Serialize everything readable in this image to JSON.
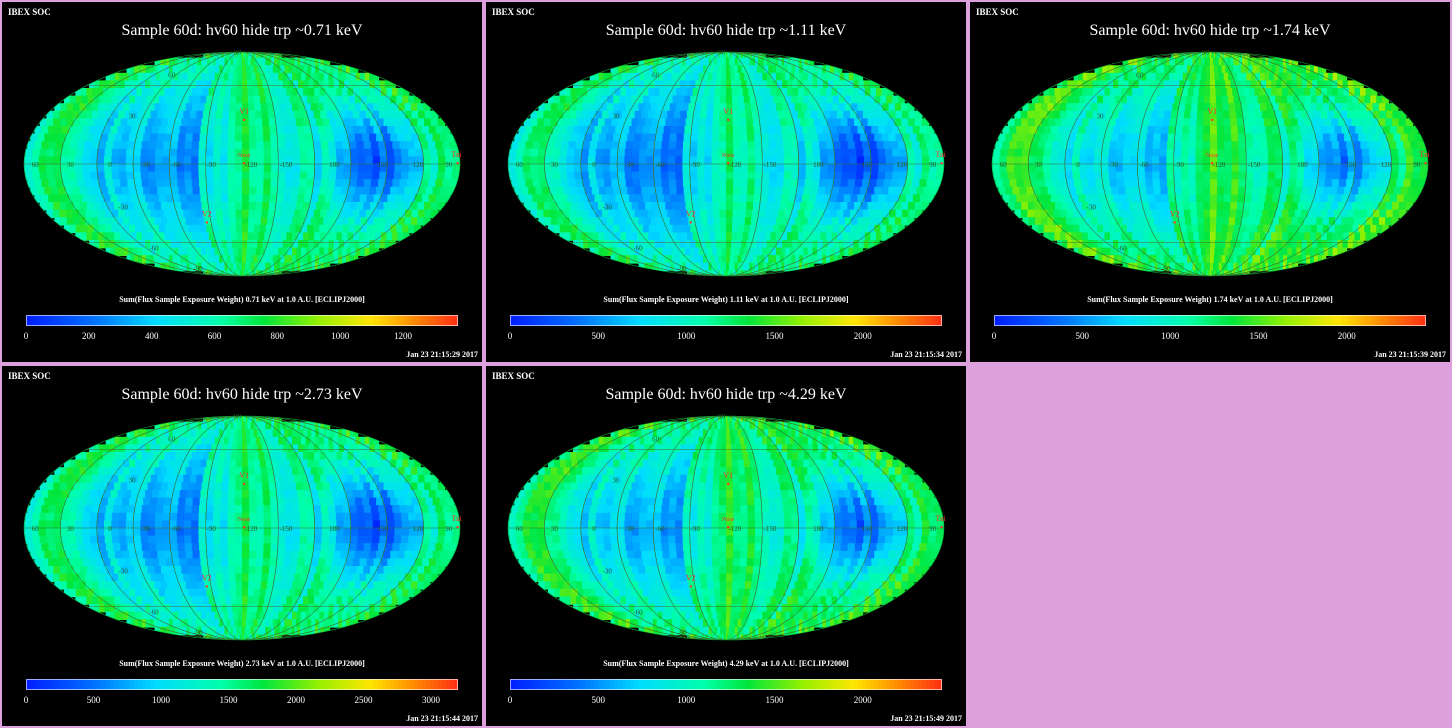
{
  "panels": [
    {
      "soc": "IBEX SOC",
      "title": "Sample 60d: hv60 hide trp ~0.71 keV",
      "colorbar_label": "Sum(Flux Sample Exposure Weight)  0.71 keV at 1.0 A.U. [ECLIPJ2000]",
      "timestamp": "Jan 23 21:15:29 2017",
      "ticks": [
        "0",
        "200",
        "400",
        "600",
        "800",
        "1000",
        "1200"
      ],
      "tick_values": [
        0,
        200,
        400,
        600,
        800,
        1000,
        1200
      ],
      "vmax": 1375,
      "green_level": 0.45
    },
    {
      "soc": "IBEX SOC",
      "title": "Sample 60d: hv60 hide trp ~1.11 keV",
      "colorbar_label": "Sum(Flux Sample Exposure Weight)  1.11 keV at 1.0 A.U. [ECLIPJ2000]",
      "timestamp": "Jan 23 21:15:34 2017",
      "ticks": [
        "0",
        "500",
        "1000",
        "1500",
        "2000"
      ],
      "tick_values": [
        0,
        500,
        1000,
        1500,
        2000
      ],
      "vmax": 2450,
      "green_level": 0.42
    },
    {
      "soc": "IBEX SOC",
      "title": "Sample 60d: hv60 hide trp ~1.74 keV",
      "colorbar_label": "Sum(Flux Sample Exposure Weight)  1.74 keV at 1.0 A.U. [ECLIPJ2000]",
      "timestamp": "Jan 23 21:15:39 2017",
      "ticks": [
        "0",
        "500",
        "1000",
        "1500",
        "2000"
      ],
      "tick_values": [
        0,
        500,
        1000,
        1500,
        2000
      ],
      "vmax": 2450,
      "green_level": 0.52
    },
    {
      "soc": "IBEX SOC",
      "title": "Sample 60d: hv60 hide trp ~2.73 keV",
      "colorbar_label": "Sum(Flux Sample Exposure Weight)  2.73 keV at 1.0 A.U. [ECLIPJ2000]",
      "timestamp": "Jan 23 21:15:44 2017",
      "ticks": [
        "0",
        "500",
        "1000",
        "1500",
        "2000",
        "2500",
        "3000"
      ],
      "tick_values": [
        0,
        500,
        1000,
        1500,
        2000,
        2500,
        3000
      ],
      "vmax": 3200,
      "green_level": 0.44
    },
    {
      "soc": "IBEX SOC",
      "title": "Sample 60d: hv60 hide trp ~4.29 keV",
      "colorbar_label": "Sum(Flux Sample Exposure Weight)  4.29 keV at 1.0 A.U. [ECLIPJ2000]",
      "timestamp": "Jan 23 21:15:49 2017",
      "ticks": [
        "0",
        "500",
        "1000",
        "1500",
        "2000"
      ],
      "tick_values": [
        0,
        500,
        1000,
        1500,
        2000
      ],
      "vmax": 2450,
      "green_level": 0.48
    }
  ],
  "map_labels": {
    "lon_left": [
      "60",
      "30",
      "0",
      "-30",
      "-60",
      "-90",
      "-120",
      "-150",
      "180",
      "150",
      "120",
      "90"
    ],
    "lat": [
      "60",
      "30",
      "-30",
      "-60",
      "-90",
      "90"
    ],
    "markers": [
      "V1",
      "V2",
      "Nose",
      "Tail"
    ]
  },
  "colors": {
    "background": "#000000",
    "page": "#dda0dd",
    "marker": "#ff3030",
    "graticule": "#4a7a2a"
  },
  "chart_data": [
    {
      "type": "heatmap",
      "title": "Sample 60d: hv60 hide trp ~0.71 keV",
      "colorbar": "Sum(Flux Sample Exposure Weight)  0.71 keV at 1.0 A.U. [ECLIPJ2000]",
      "projection": "Mollweide-like ecliptic sky map",
      "clim": [
        0,
        1375
      ]
    },
    {
      "type": "heatmap",
      "title": "Sample 60d: hv60 hide trp ~1.11 keV",
      "colorbar": "Sum(Flux Sample Exposure Weight)  1.11 keV at 1.0 A.U. [ECLIPJ2000]",
      "projection": "Mollweide-like ecliptic sky map",
      "clim": [
        0,
        2450
      ]
    },
    {
      "type": "heatmap",
      "title": "Sample 60d: hv60 hide trp ~1.74 keV",
      "colorbar": "Sum(Flux Sample Exposure Weight)  1.74 keV at 1.0 A.U. [ECLIPJ2000]",
      "projection": "Mollweide-like ecliptic sky map",
      "clim": [
        0,
        2450
      ]
    },
    {
      "type": "heatmap",
      "title": "Sample 60d: hv60 hide trp ~2.73 keV",
      "colorbar": "Sum(Flux Sample Exposure Weight)  2.73 keV at 1.0 A.U. [ECLIPJ2000]",
      "projection": "Mollweide-like ecliptic sky map",
      "clim": [
        0,
        3200
      ]
    },
    {
      "type": "heatmap",
      "title": "Sample 60d: hv60 hide trp ~4.29 keV",
      "colorbar": "Sum(Flux Sample Exposure Weight)  4.29 keV at 1.0 A.U. [ECLIPJ2000]",
      "projection": "Mollweide-like ecliptic sky map",
      "clim": [
        0,
        2450
      ]
    }
  ]
}
